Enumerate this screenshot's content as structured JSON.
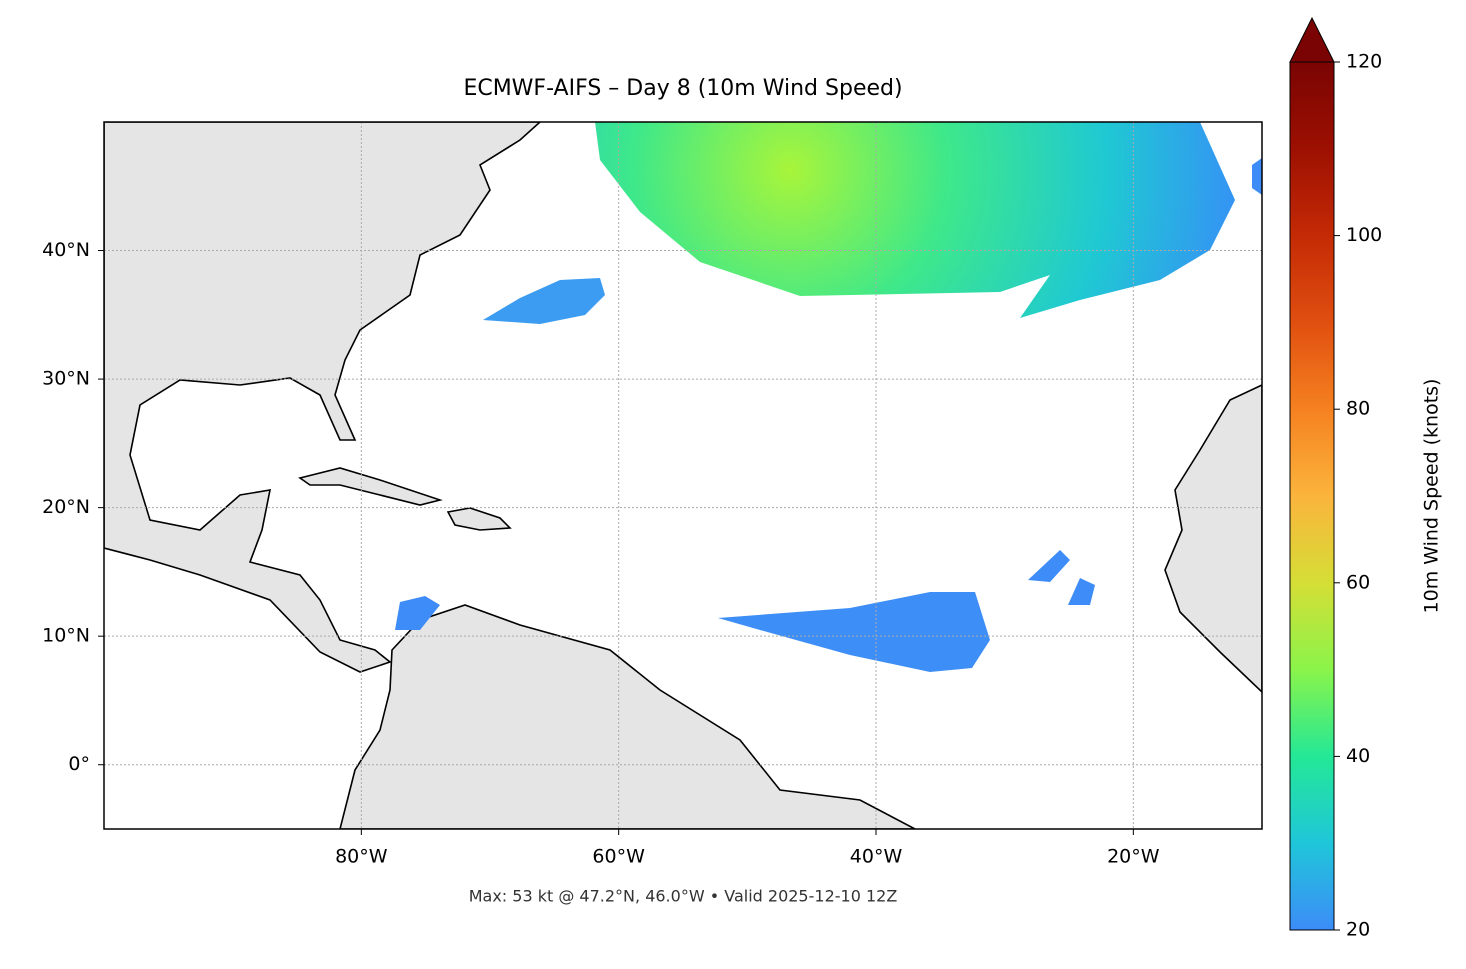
{
  "chart_data": {
    "type": "map",
    "title": "ECMWF-AIFS – Day 8 (10m Wind Speed)",
    "footer": "Max: 53 kt @ 47.2°N, 46.0°W • Valid 2025-12-10 12Z",
    "xlim": [
      -100,
      -10
    ],
    "ylim": [
      -5,
      50
    ],
    "xticks": [
      {
        "value": -80,
        "label": "80°W"
      },
      {
        "value": -60,
        "label": "60°W"
      },
      {
        "value": -40,
        "label": "40°W"
      },
      {
        "value": -20,
        "label": "20°W"
      }
    ],
    "yticks": [
      {
        "value": 40,
        "label": "40°N"
      },
      {
        "value": 30,
        "label": "30°N"
      },
      {
        "value": 20,
        "label": "20°N"
      },
      {
        "value": 10,
        "label": "10°N"
      },
      {
        "value": 0,
        "label": "0°"
      }
    ],
    "grid": true,
    "colorbar": {
      "label": "10m Wind Speed (knots)",
      "lim": [
        20,
        120
      ],
      "ticks": [
        20,
        40,
        60,
        80,
        100,
        120
      ],
      "extend": "max",
      "colormap": [
        "#3d8cf8",
        "#1fc6d9",
        "#24e896",
        "#8af44a",
        "#d5de36",
        "#fbb43c",
        "#f58120",
        "#e04f10",
        "#c42a05",
        "#9d1002",
        "#7a0403"
      ]
    }
  }
}
